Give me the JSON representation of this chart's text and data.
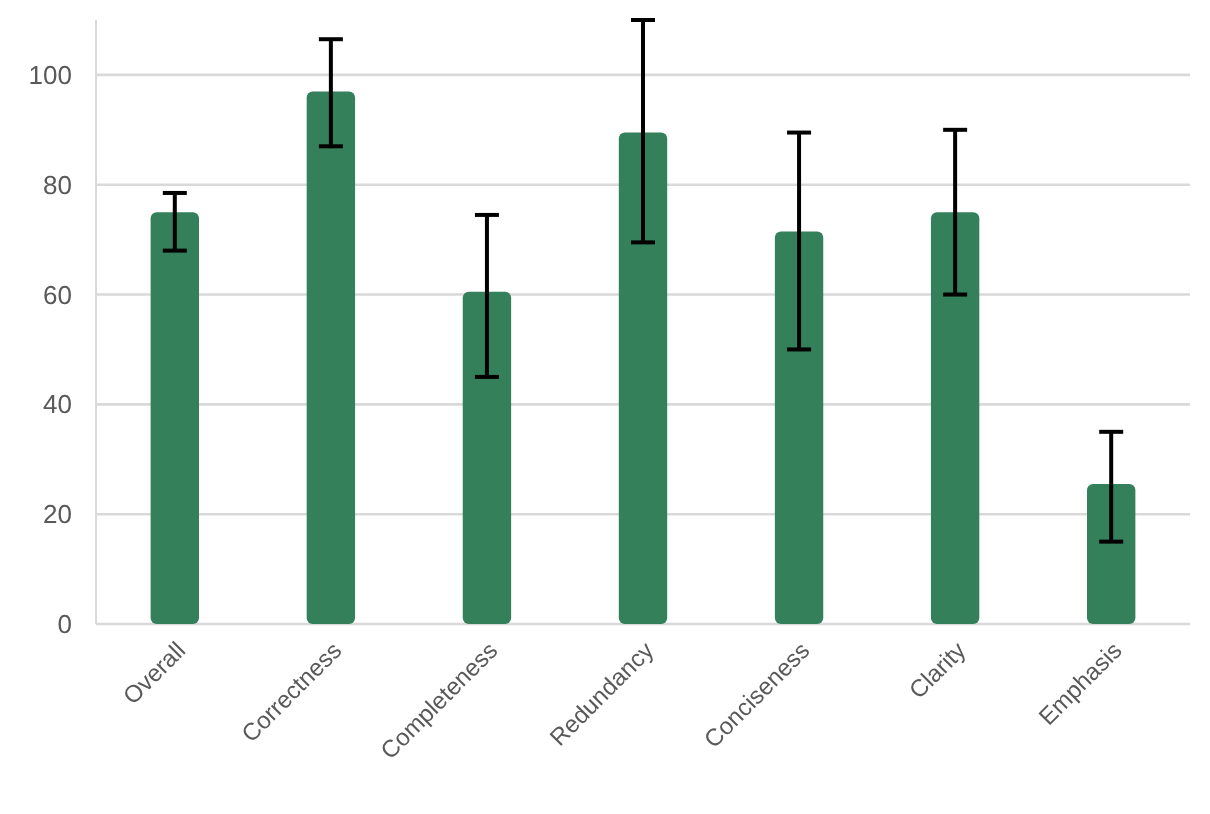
{
  "chart_data": {
    "type": "bar",
    "categories": [
      "Overall",
      "Correctness",
      "Completeness",
      "Redundancy",
      "Conciseness",
      "Clarity",
      "Emphasis"
    ],
    "series": [
      {
        "color": "#34805a",
        "values": [
          75,
          97,
          60.5,
          89.5,
          71.5,
          75,
          25.5
        ],
        "errors": [
          [
            68,
            78.5
          ],
          [
            87,
            106.5
          ],
          [
            45,
            74.5
          ],
          [
            69.5,
            110
          ],
          [
            50,
            89.5
          ],
          [
            60,
            90
          ],
          [
            15,
            35
          ]
        ]
      }
    ],
    "ylim": [
      0,
      110
    ],
    "yticks": [
      0,
      20,
      40,
      60,
      80,
      100
    ],
    "grid": "y"
  }
}
